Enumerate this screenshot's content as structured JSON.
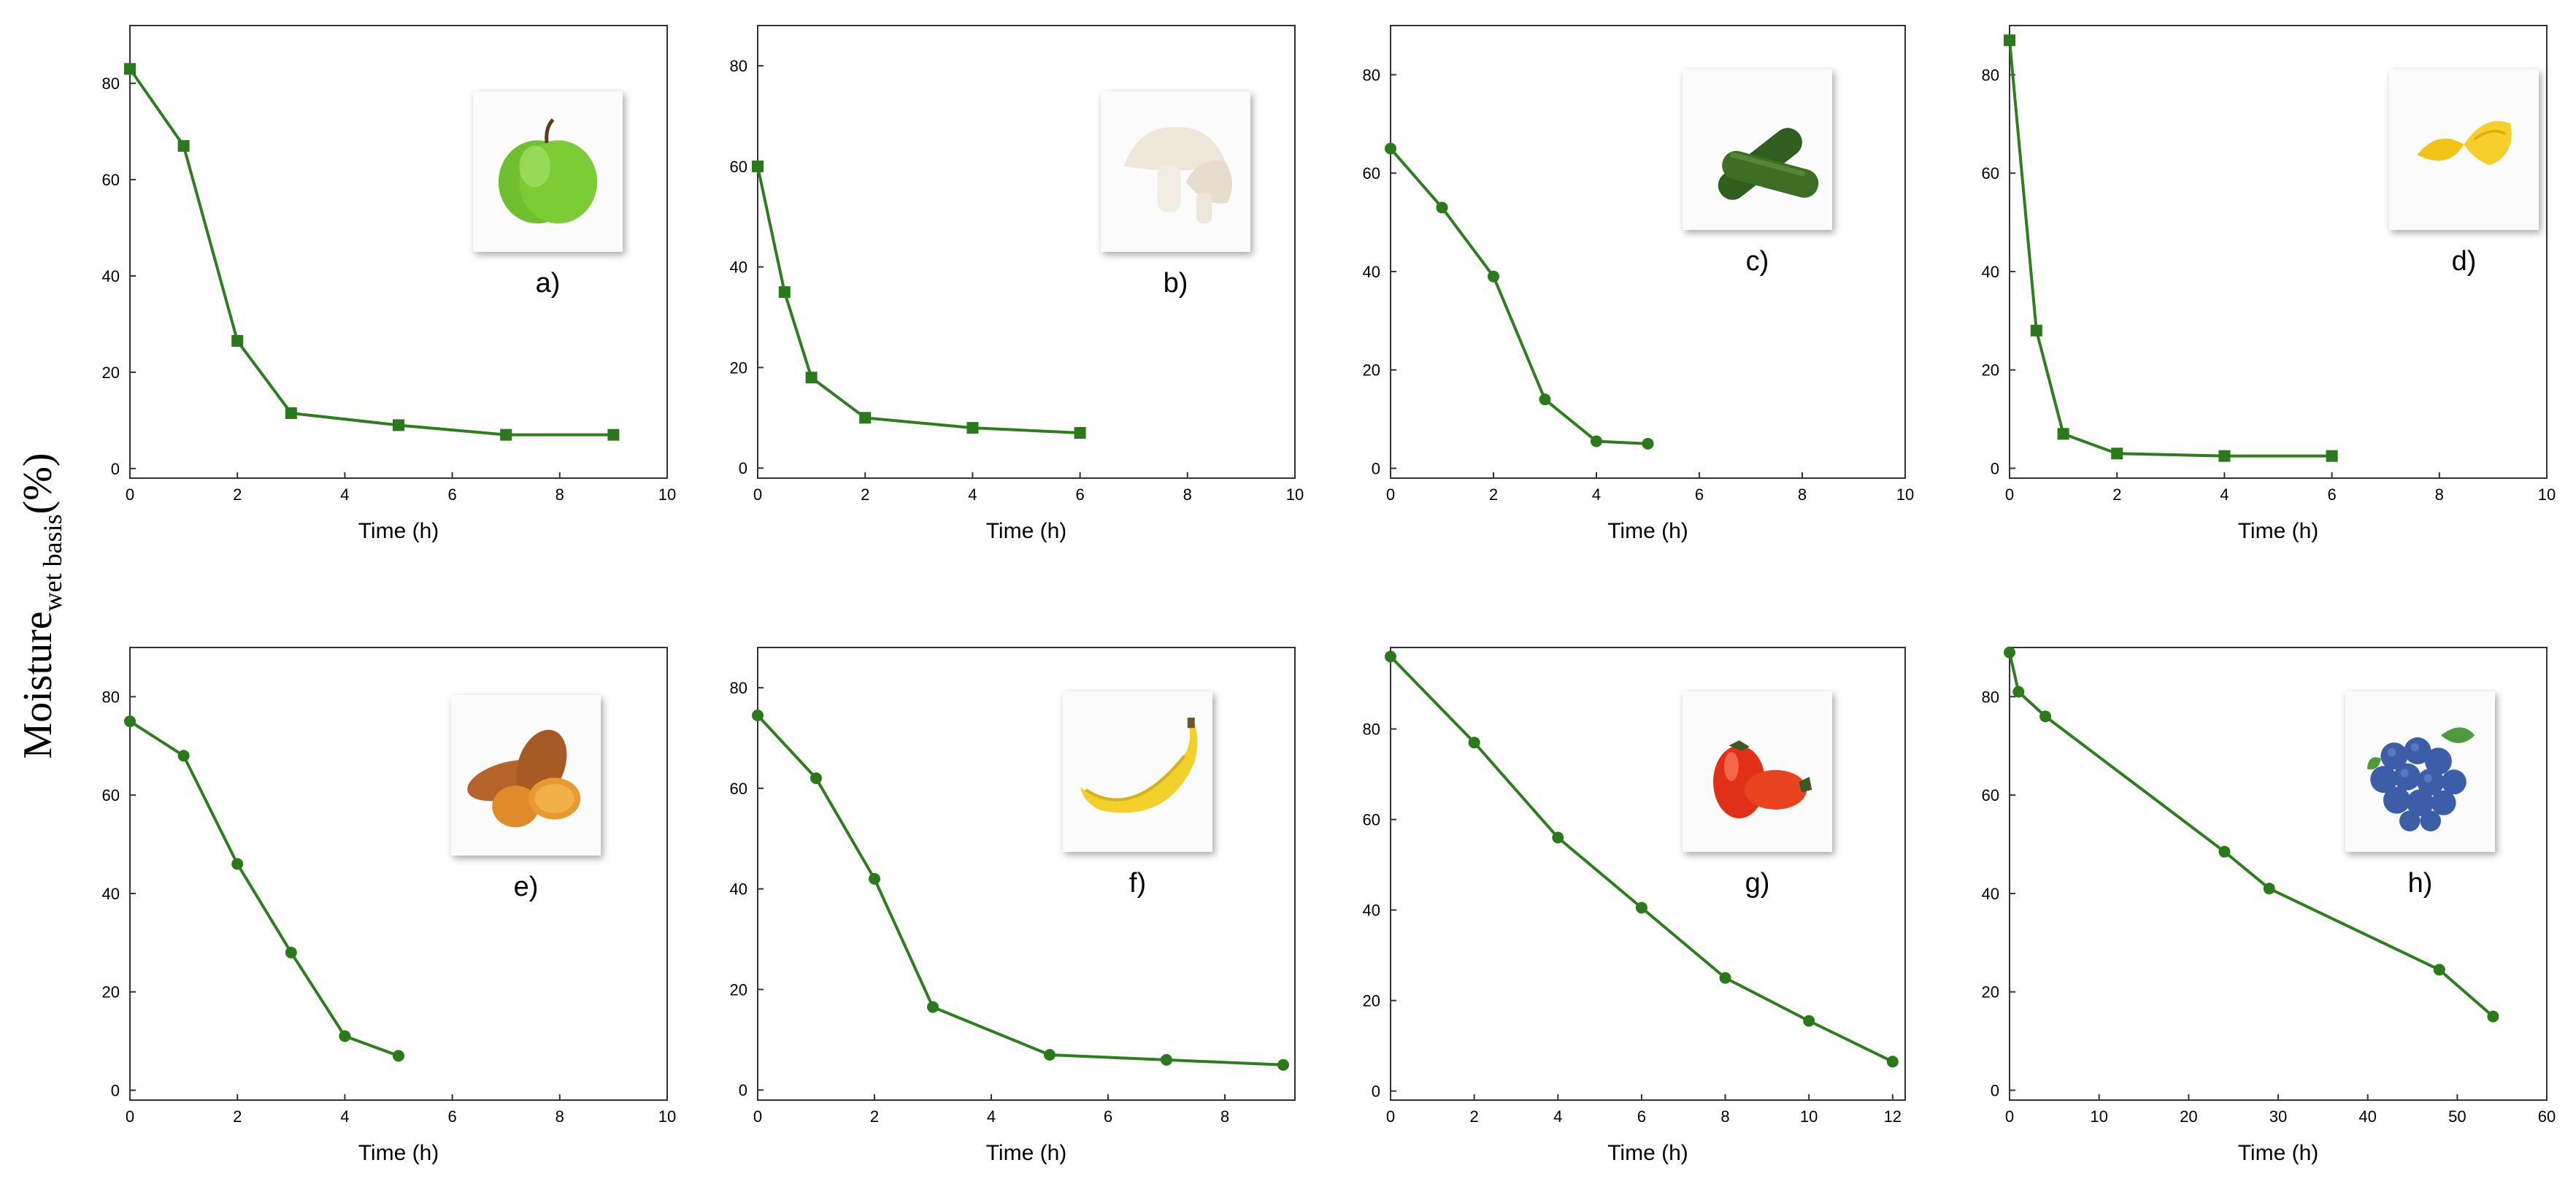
{
  "figure": {
    "ylabel_main": "Moisture",
    "ylabel_sub": "wet basis",
    "ylabel_unit": "(%)"
  },
  "colors": {
    "series": "#2e7d1f",
    "marker": "#2a7a1c"
  },
  "chart_data": [
    {
      "type": "line",
      "panel_label": "a)",
      "icon": "apple-icon",
      "xlabel": "Time (h)",
      "xlim": [
        0,
        10
      ],
      "ylim": [
        -2,
        92
      ],
      "xticks": [
        0,
        2,
        4,
        6,
        8,
        10
      ],
      "yticks": [
        0,
        20,
        40,
        60,
        80
      ],
      "x": [
        0,
        1,
        2,
        3,
        5,
        7,
        9
      ],
      "y": [
        83,
        67,
        26.5,
        11.5,
        9,
        7,
        7
      ]
    },
    {
      "type": "line",
      "panel_label": "b)",
      "icon": "mushroom-icon",
      "xlabel": "Time (h)",
      "xlim": [
        0,
        10
      ],
      "ylim": [
        -2,
        88
      ],
      "xticks": [
        0,
        2,
        4,
        6,
        8,
        10
      ],
      "yticks": [
        0,
        20,
        40,
        60,
        80
      ],
      "x": [
        0,
        0.5,
        1,
        2,
        4,
        6
      ],
      "y": [
        60,
        35,
        18,
        10,
        8,
        7
      ]
    },
    {
      "type": "line",
      "panel_label": "c)",
      "icon": "zucchini-icon",
      "xlabel": "Time (h)",
      "xlim": [
        0,
        10
      ],
      "ylim": [
        -2,
        90
      ],
      "xticks": [
        0,
        2,
        4,
        6,
        8,
        10
      ],
      "yticks": [
        0,
        20,
        40,
        60,
        80
      ],
      "x": [
        0,
        1,
        2,
        3,
        4,
        5
      ],
      "y": [
        65,
        53,
        39,
        14,
        5.5,
        5
      ]
    },
    {
      "type": "line",
      "panel_label": "d)",
      "icon": "lemon-icon",
      "xlabel": "Time (h)",
      "xlim": [
        0,
        10
      ],
      "ylim": [
        -2,
        90
      ],
      "xticks": [
        0,
        2,
        4,
        6,
        8,
        10
      ],
      "yticks": [
        0,
        20,
        40,
        60,
        80
      ],
      "x": [
        0,
        0.5,
        1,
        2,
        4,
        6
      ],
      "y": [
        87,
        28,
        7,
        3,
        2.5,
        2.5
      ]
    },
    {
      "type": "line",
      "panel_label": "e)",
      "icon": "sweet-potato-icon",
      "xlabel": "Time (h)",
      "xlim": [
        0,
        10
      ],
      "ylim": [
        -2,
        90
      ],
      "xticks": [
        0,
        2,
        4,
        6,
        8,
        10
      ],
      "yticks": [
        0,
        20,
        40,
        60,
        80
      ],
      "x": [
        0,
        1,
        2,
        3,
        4,
        5
      ],
      "y": [
        75,
        68,
        46,
        28,
        11,
        7
      ]
    },
    {
      "type": "line",
      "panel_label": "f)",
      "icon": "banana-icon",
      "xlabel": "Time (h)",
      "xlim": [
        0,
        9.2
      ],
      "ylim": [
        -2,
        88
      ],
      "xticks": [
        0,
        2,
        4,
        6,
        8
      ],
      "yticks": [
        0,
        20,
        40,
        60,
        80
      ],
      "x": [
        0,
        1,
        2,
        3,
        5,
        7,
        9
      ],
      "y": [
        74.5,
        62,
        42,
        16.5,
        7,
        6,
        5
      ]
    },
    {
      "type": "line",
      "panel_label": "g)",
      "icon": "tomato-icon",
      "xlabel": "Time (h)",
      "xlim": [
        0,
        12.3
      ],
      "ylim": [
        -2,
        98
      ],
      "xticks": [
        0,
        2,
        4,
        6,
        8,
        10,
        12
      ],
      "yticks": [
        0,
        20,
        40,
        60,
        80
      ],
      "x": [
        0,
        2,
        4,
        6,
        8,
        10,
        12
      ],
      "y": [
        96,
        77,
        56,
        40.5,
        25,
        15.5,
        6.5
      ]
    },
    {
      "type": "line",
      "panel_label": "h)",
      "icon": "blueberry-icon",
      "xlabel": "Time (h)",
      "xlim": [
        0,
        60
      ],
      "ylim": [
        -2,
        90
      ],
      "xticks": [
        0,
        10,
        20,
        30,
        40,
        50,
        60
      ],
      "yticks": [
        0,
        20,
        40,
        60,
        80
      ],
      "x": [
        0,
        1,
        4,
        24,
        29,
        48,
        54
      ],
      "y": [
        89,
        81,
        76,
        48.5,
        41,
        24.5,
        15
      ]
    }
  ]
}
